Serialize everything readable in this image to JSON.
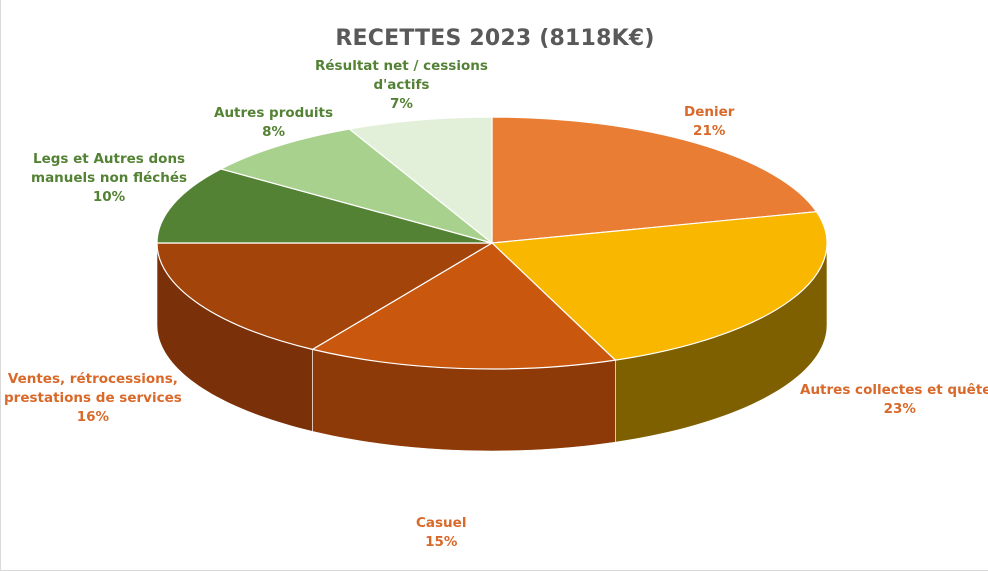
{
  "chart_data": {
    "type": "pie",
    "title": "RECETTES 2023 (8118K€)",
    "slices": [
      {
        "label_lines": [
          "Denier"
        ],
        "pct_label": "21%",
        "value": 21,
        "color": "#E87D33",
        "side_color": "#B5561A",
        "label_color": "#D9692A"
      },
      {
        "label_lines": [
          "Autres collectes et quêtes"
        ],
        "pct_label": "23%",
        "value": 23,
        "color": "#F9B700",
        "side_color": "#7F6000",
        "label_color": "#D9692A"
      },
      {
        "label_lines": [
          "Casuel"
        ],
        "pct_label": "15%",
        "value": 15,
        "color": "#C9570E",
        "side_color": "#8E3A08",
        "label_color": "#D9692A"
      },
      {
        "label_lines": [
          "Ventes, rétrocessions,",
          "prestations  de services"
        ],
        "pct_label": "16%",
        "value": 16,
        "color": "#A3440B",
        "side_color": "#7A3008",
        "label_color": "#D9692A"
      },
      {
        "label_lines": [
          "Legs et Autres dons",
          "manuels non fléchés"
        ],
        "pct_label": "10%",
        "value": 10,
        "color": "#548235",
        "side_color": "#3B5E25",
        "label_color": "#548235"
      },
      {
        "label_lines": [
          "Autres produits"
        ],
        "pct_label": "8%",
        "value": 8,
        "color": "#A9D18E",
        "side_color": "#7FA26A",
        "label_color": "#548235"
      },
      {
        "label_lines": [
          "Résultat net / cessions",
          "d'actifs"
        ],
        "pct_label": "7%",
        "value": 7,
        "color": "#E2EFD9",
        "side_color": "#B9C8AE",
        "label_color": "#548235"
      }
    ],
    "legend": "none",
    "start_angle": "12 o'clock, clockwise",
    "style": "3D pie"
  }
}
